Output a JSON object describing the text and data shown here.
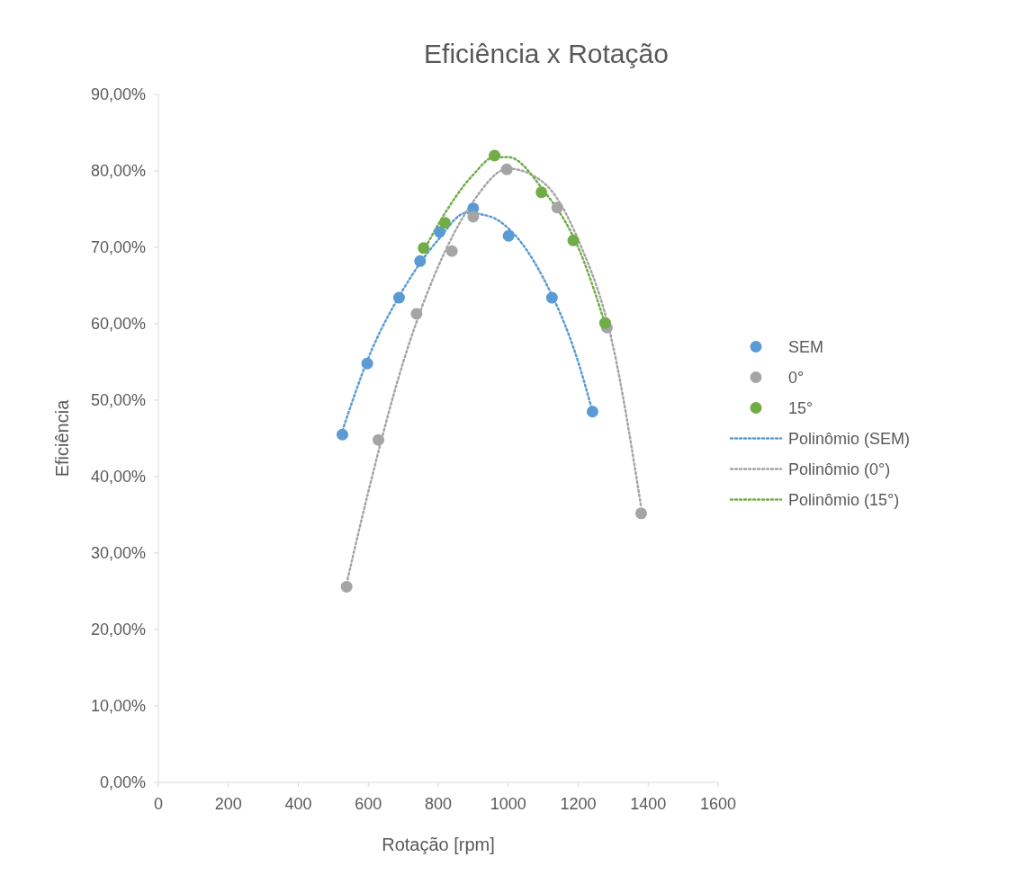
{
  "chart_data": {
    "type": "scatter",
    "title": "Eficiência x Rotação",
    "xlabel": "Rotação [rpm]",
    "ylabel": "Eficiência",
    "xlim": [
      0,
      1600
    ],
    "xticks": [
      0,
      200,
      400,
      600,
      800,
      1000,
      1200,
      1400,
      1600
    ],
    "ylim": [
      0,
      90
    ],
    "yticks": [
      {
        "value": 0,
        "label": "0,00%"
      },
      {
        "value": 10,
        "label": "10,00%"
      },
      {
        "value": 20,
        "label": "20,00%"
      },
      {
        "value": 30,
        "label": "30,00%"
      },
      {
        "value": 40,
        "label": "40,00%"
      },
      {
        "value": 50,
        "label": "50,00%"
      },
      {
        "value": 60,
        "label": "60,00%"
      },
      {
        "value": 70,
        "label": "70,00%"
      },
      {
        "value": 80,
        "label": "80,00%"
      },
      {
        "value": 90,
        "label": "90,00%"
      }
    ],
    "grid": false,
    "legend": "right",
    "series": [
      {
        "name": "SEM",
        "marker": "circle",
        "color": "#5b9bd5",
        "x": [
          526,
          597,
          688,
          748,
          804,
          900,
          1001,
          1125,
          1241
        ],
        "values": [
          45.5,
          54.8,
          63.4,
          68.2,
          72.0,
          75.1,
          71.5,
          63.4,
          48.5
        ]
      },
      {
        "name": "0°",
        "marker": "circle",
        "color": "#a5a5a5",
        "x": [
          538,
          629,
          738,
          839,
          900,
          996,
          1140,
          1282,
          1380
        ],
        "values": [
          25.6,
          44.8,
          61.3,
          69.5,
          74.0,
          80.2,
          75.2,
          59.5,
          35.2
        ]
      },
      {
        "name": "15°",
        "marker": "circle",
        "color": "#70ad47",
        "x": [
          758,
          819,
          961,
          1095,
          1186,
          1277
        ],
        "values": [
          69.9,
          73.2,
          82.0,
          77.2,
          70.9,
          60.1
        ]
      },
      {
        "name": "Polinômio (SEM)",
        "type": "line",
        "marker": "none",
        "line_style": "dotted",
        "color": "#5b9bd5",
        "x": [
          526,
          600,
          700,
          800,
          880,
          950,
          1000,
          1100,
          1200,
          1241
        ],
        "values": [
          46,
          55.5,
          64.5,
          71,
          74.5,
          74,
          72.5,
          66,
          55,
          48.5
        ]
      },
      {
        "name": "Polinômio (0°)",
        "type": "line",
        "marker": "none",
        "line_style": "dotted",
        "color": "#a5a5a5",
        "x": [
          538,
          600,
          700,
          800,
          900,
          1000,
          1100,
          1200,
          1300,
          1380
        ],
        "values": [
          26,
          38,
          55,
          67.5,
          76,
          80.3,
          78.5,
          71,
          57,
          36
        ]
      },
      {
        "name": "Polinômio (15°)",
        "type": "line",
        "marker": "none",
        "line_style": "dotted",
        "color": "#70ad47",
        "x": [
          758,
          800,
          900,
          960,
          1000,
          1100,
          1200,
          1277
        ],
        "values": [
          69.5,
          73,
          79.5,
          81.8,
          81.8,
          77.5,
          70,
          60
        ]
      }
    ]
  }
}
